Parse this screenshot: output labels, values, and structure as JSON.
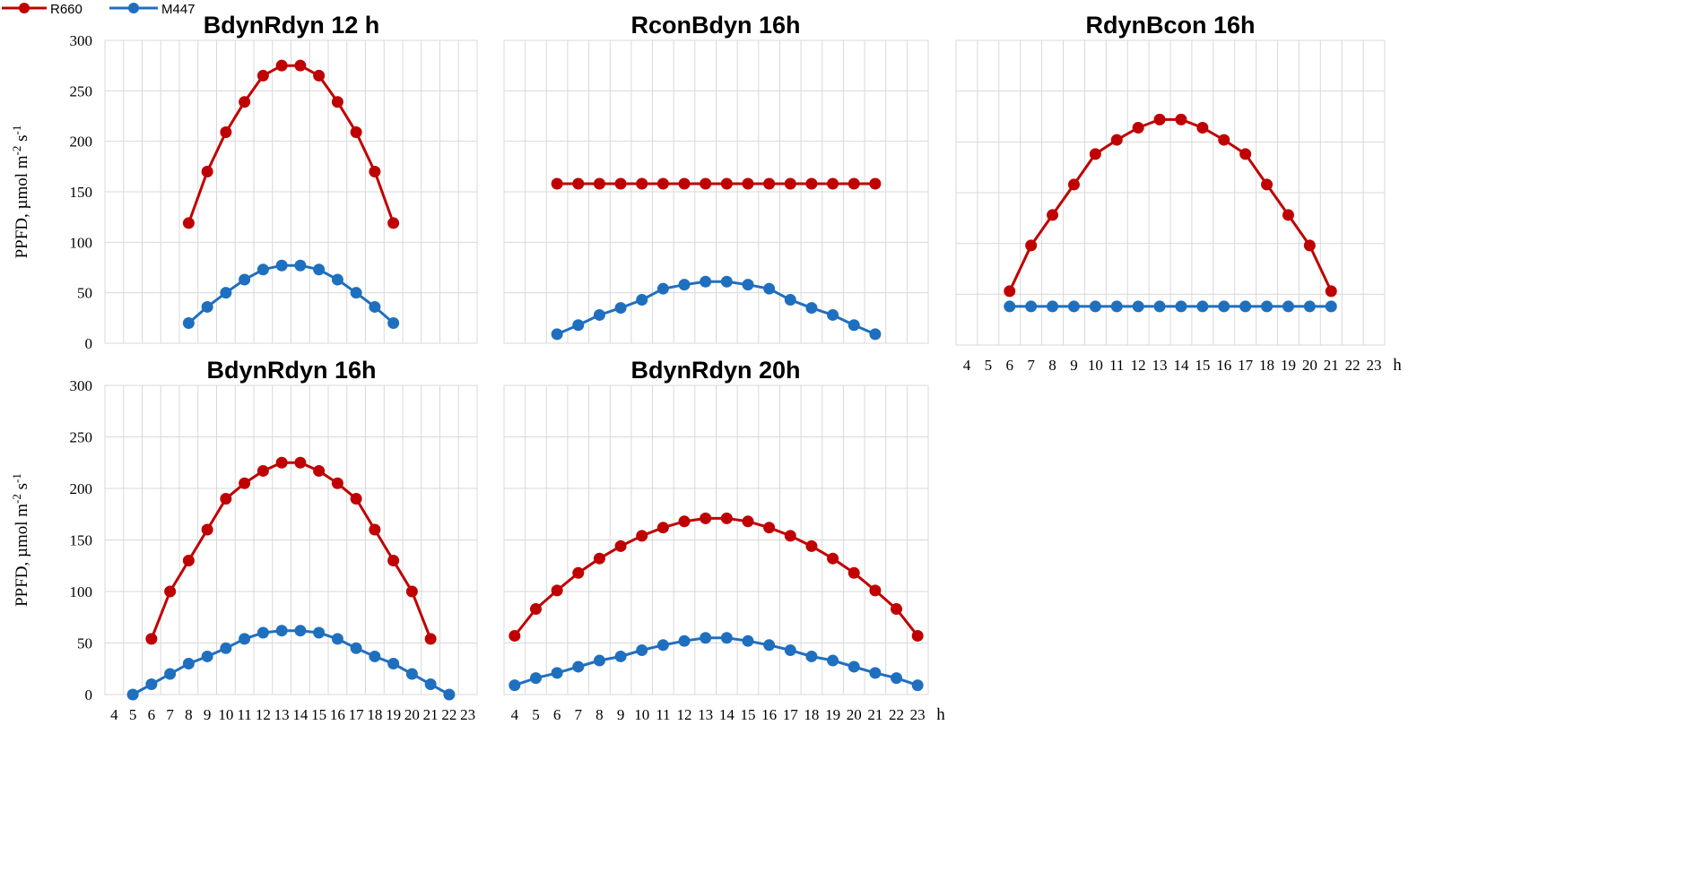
{
  "legend": {
    "items": [
      {
        "label": "R660",
        "color": "#c00000"
      },
      {
        "label": "M447",
        "color": "#1f6fbf"
      }
    ]
  },
  "chart_data": [
    {
      "type": "line",
      "title": "BdynRdyn 12 h",
      "ylabel": "PPFD, µmol m-2 s-1",
      "ylim": [
        0,
        300
      ],
      "yticks": [
        0,
        50,
        100,
        150,
        200,
        250,
        300
      ],
      "xlim": [
        4,
        23
      ],
      "grid": true,
      "x_tick_labels_shown": false,
      "x_unit": "",
      "series": [
        {
          "name": "R660",
          "color": "#c00000",
          "x": [
            8,
            9,
            10,
            11,
            12,
            13,
            14,
            15,
            16,
            17,
            18,
            19
          ],
          "values": [
            119,
            170,
            209,
            239,
            265,
            275,
            275,
            265,
            239,
            209,
            170,
            119
          ]
        },
        {
          "name": "M447",
          "color": "#1f6fbf",
          "x": [
            8,
            9,
            10,
            11,
            12,
            13,
            14,
            15,
            16,
            17,
            18,
            19
          ],
          "values": [
            20,
            36,
            50,
            63,
            73,
            77,
            77,
            73,
            63,
            50,
            36,
            20
          ]
        }
      ]
    },
    {
      "type": "line",
      "title": "RconBdyn 16h",
      "ylim": [
        0,
        300
      ],
      "xlim": [
        4,
        23
      ],
      "grid": true,
      "x_tick_labels_shown": false,
      "x_unit": "",
      "series": [
        {
          "name": "R660",
          "color": "#c00000",
          "x": [
            6,
            7,
            8,
            9,
            10,
            11,
            12,
            13,
            14,
            15,
            16,
            17,
            18,
            19,
            20,
            21
          ],
          "values": [
            158,
            158,
            158,
            158,
            158,
            158,
            158,
            158,
            158,
            158,
            158,
            158,
            158,
            158,
            158,
            158
          ]
        },
        {
          "name": "M447",
          "color": "#1f6fbf",
          "x": [
            6,
            7,
            8,
            9,
            10,
            11,
            12,
            13,
            14,
            15,
            16,
            17,
            18,
            19,
            20,
            21
          ],
          "values": [
            9,
            18,
            28,
            35,
            43,
            54,
            58,
            61,
            61,
            58,
            54,
            43,
            35,
            28,
            18,
            9
          ]
        }
      ]
    },
    {
      "type": "line",
      "title": "RdynBcon 16h",
      "ylim": [
        0,
        300
      ],
      "xlim": [
        4,
        23
      ],
      "xticks": [
        4,
        5,
        6,
        7,
        8,
        9,
        10,
        11,
        12,
        13,
        14,
        15,
        16,
        17,
        18,
        19,
        20,
        21,
        22,
        23
      ],
      "grid": true,
      "x_tick_labels_shown": true,
      "x_unit": "h",
      "series": [
        {
          "name": "R660",
          "color": "#c00000",
          "x": [
            6,
            7,
            8,
            9,
            10,
            11,
            12,
            13,
            14,
            15,
            16,
            17,
            18,
            19,
            20,
            21
          ],
          "values": [
            53,
            98,
            128,
            158,
            188,
            202,
            214,
            222,
            222,
            214,
            202,
            188,
            158,
            128,
            98,
            53
          ]
        },
        {
          "name": "M447",
          "color": "#1f6fbf",
          "x": [
            6,
            7,
            8,
            9,
            10,
            11,
            12,
            13,
            14,
            15,
            16,
            17,
            18,
            19,
            20,
            21
          ],
          "values": [
            38,
            38,
            38,
            38,
            38,
            38,
            38,
            38,
            38,
            38,
            38,
            38,
            38,
            38,
            38,
            38
          ]
        }
      ]
    },
    {
      "type": "line",
      "title": "BdynRdyn 16h",
      "ylabel": "PPFD, µmol m-2 s-1",
      "ylim": [
        0,
        300
      ],
      "yticks": [
        0,
        50,
        100,
        150,
        200,
        250,
        300
      ],
      "xlim": [
        4,
        23
      ],
      "xticks": [
        4,
        5,
        6,
        7,
        8,
        9,
        10,
        11,
        12,
        13,
        14,
        15,
        16,
        17,
        18,
        19,
        20,
        21,
        22,
        23
      ],
      "grid": true,
      "x_tick_labels_shown": true,
      "x_unit": "",
      "series": [
        {
          "name": "R660",
          "color": "#c00000",
          "x": [
            6,
            7,
            8,
            9,
            10,
            11,
            12,
            13,
            14,
            15,
            16,
            17,
            18,
            19,
            20,
            21
          ],
          "values": [
            54,
            100,
            130,
            160,
            190,
            205,
            217,
            225,
            225,
            217,
            205,
            190,
            160,
            130,
            100,
            54
          ]
        },
        {
          "name": "M447",
          "color": "#1f6fbf",
          "x": [
            5,
            6,
            7,
            8,
            9,
            10,
            11,
            12,
            13,
            14,
            15,
            16,
            17,
            18,
            19,
            20,
            21,
            22
          ],
          "values": [
            0,
            10,
            20,
            30,
            37,
            45,
            54,
            60,
            62,
            62,
            60,
            54,
            45,
            37,
            30,
            20,
            10,
            0
          ]
        }
      ]
    },
    {
      "type": "line",
      "title": "BdynRdyn 20h",
      "ylim": [
        0,
        300
      ],
      "xlim": [
        4,
        23
      ],
      "xticks": [
        4,
        5,
        6,
        7,
        8,
        9,
        10,
        11,
        12,
        13,
        14,
        15,
        16,
        17,
        18,
        19,
        20,
        21,
        22,
        23
      ],
      "grid": true,
      "x_tick_labels_shown": true,
      "x_unit": "h",
      "series": [
        {
          "name": "R660",
          "color": "#c00000",
          "x": [
            4,
            5,
            6,
            7,
            8,
            9,
            10,
            11,
            12,
            13,
            14,
            15,
            16,
            17,
            18,
            19,
            20,
            21,
            22,
            23
          ],
          "values": [
            57,
            83,
            101,
            118,
            132,
            144,
            154,
            162,
            168,
            171,
            171,
            168,
            162,
            154,
            144,
            132,
            118,
            101,
            83,
            57
          ]
        },
        {
          "name": "M447",
          "color": "#1f6fbf",
          "x": [
            4,
            5,
            6,
            7,
            8,
            9,
            10,
            11,
            12,
            13,
            14,
            15,
            16,
            17,
            18,
            19,
            20,
            21,
            22,
            23
          ],
          "values": [
            9,
            16,
            21,
            27,
            33,
            37,
            43,
            48,
            52,
            55,
            55,
            52,
            48,
            43,
            37,
            33,
            27,
            21,
            16,
            9
          ]
        }
      ]
    }
  ]
}
